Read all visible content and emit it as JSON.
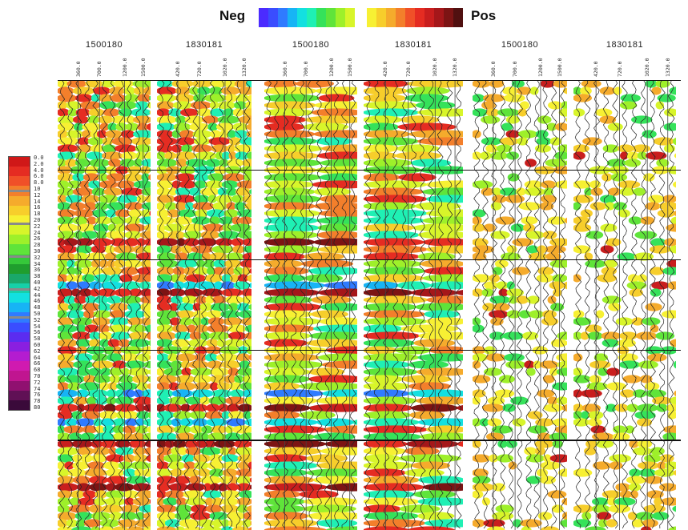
{
  "legend": {
    "neg_label": "Neg",
    "pos_label": "Pos",
    "neg_colors": [
      "#4b2bff",
      "#3a4dff",
      "#2f7bff",
      "#17b4f5",
      "#13e0e0",
      "#1ff0b4",
      "#35e25a",
      "#5fe43a",
      "#9ef02a",
      "#d8f52a"
    ],
    "pos_colors": [
      "#f7f033",
      "#f7ce2b",
      "#f5ab2c",
      "#f37f2b",
      "#f05028",
      "#e52c22",
      "#c91e1e",
      "#a5171a",
      "#7c1414",
      "#501010"
    ]
  },
  "colorbar": {
    "ticks": [
      "0.0",
      "2.0",
      "4.0",
      "6.0",
      "8.0",
      "10",
      "12",
      "14",
      "16",
      "18",
      "20",
      "22",
      "24",
      "26",
      "28",
      "30",
      "32",
      "34",
      "36",
      "38",
      "40",
      "42",
      "44",
      "46",
      "48",
      "50",
      "52",
      "54",
      "56",
      "58",
      "60",
      "62",
      "64",
      "66",
      "68",
      "70",
      "72",
      "74",
      "76",
      "78",
      "80"
    ],
    "colors": [
      "#d01818",
      "#e52c22",
      "#f05028",
      "#f37f2b",
      "#f5ab2c",
      "#f7ce2b",
      "#f7f033",
      "#d8f52a",
      "#9ef02a",
      "#5fe43a",
      "#35c83a",
      "#1f9e2e",
      "#1aa86a",
      "#16d0a8",
      "#13e0e0",
      "#17b4f5",
      "#2f7bff",
      "#3a4dff",
      "#5b2cf0",
      "#8a1fe0",
      "#b41cd0",
      "#d01ab0",
      "#c01590",
      "#901070",
      "#601055",
      "#3a0a3a"
    ]
  },
  "chart_data": [
    {
      "type": "heatmap",
      "title": "1500180",
      "tick_labels": [
        "360.0",
        "700.0",
        "1200.0",
        "1500.0"
      ]
    },
    {
      "type": "heatmap",
      "title": "1830181",
      "tick_labels": [
        "420.0",
        "720.0",
        "1020.0",
        "1320.0"
      ]
    },
    {
      "type": "heatmap",
      "title": "1500180",
      "tick_labels": [
        "360.0",
        "700.0",
        "1200.0",
        "1500.0"
      ]
    },
    {
      "type": "heatmap",
      "title": "1830181",
      "tick_labels": [
        "420.0",
        "720.0",
        "1020.0",
        "1320.0"
      ]
    },
    {
      "type": "heatmap",
      "title": "1500180",
      "tick_labels": [
        "360.0",
        "700.0",
        "1200.0",
        "1500.0"
      ]
    },
    {
      "type": "heatmap",
      "title": "1830181",
      "tick_labels": [
        "420.0",
        "720.0",
        "1020.0",
        "1320.0"
      ]
    }
  ]
}
